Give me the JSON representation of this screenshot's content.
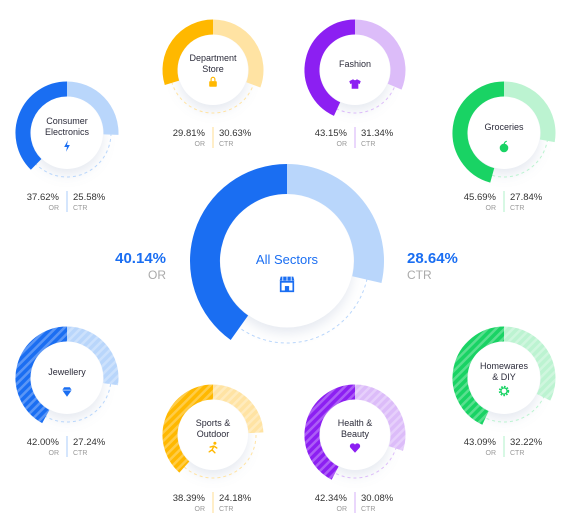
{
  "chart_data": {
    "type": "donut",
    "center": {
      "label": "All Sectors",
      "or": 40.14,
      "ctr": 28.64,
      "or_text": "40.14%",
      "ctr_text": "28.64%",
      "or_unit": "OR",
      "ctr_unit": "CTR",
      "icon": "store-icon",
      "color": "#1a6ef2",
      "light": "#b9d6fb"
    },
    "sectors": [
      {
        "id": "consumer-electronics",
        "label_lines": [
          "Consumer",
          "Electronics"
        ],
        "or": 37.62,
        "ctr": 25.58,
        "or_text": "37.62%",
        "ctr_text": "25.58%",
        "icon": "lightning-icon",
        "color": "#1a6ef2",
        "light": "#b9d6fb"
      },
      {
        "id": "department-store",
        "label_lines": [
          "Department",
          "Store"
        ],
        "or": 29.81,
        "ctr": 30.63,
        "or_text": "29.81%",
        "ctr_text": "30.63%",
        "icon": "shopping-bag-icon",
        "color": "#ffb800",
        "light": "#ffe3a3"
      },
      {
        "id": "fashion",
        "label_lines": [
          "Fashion"
        ],
        "or": 43.15,
        "ctr": 31.34,
        "or_text": "43.15%",
        "ctr_text": "31.34%",
        "icon": "tshirt-icon",
        "color": "#8c1ff2",
        "light": "#dcbcf9"
      },
      {
        "id": "groceries",
        "label_lines": [
          "Groceries"
        ],
        "or": 45.69,
        "ctr": 27.84,
        "or_text": "45.69%",
        "ctr_text": "27.84%",
        "icon": "apple-icon",
        "color": "#19d364",
        "light": "#bcf3d1"
      },
      {
        "id": "jewellery",
        "label_lines": [
          "Jewellery"
        ],
        "or": 42.0,
        "ctr": 27.24,
        "or_text": "42.00%",
        "ctr_text": "27.24%",
        "icon": "diamond-icon",
        "color": "#1a6ef2",
        "light": "#b9d6fb"
      },
      {
        "id": "sports-outdoor",
        "label_lines": [
          "Sports &",
          "Outdoor"
        ],
        "or": 38.39,
        "ctr": 24.18,
        "or_text": "38.39%",
        "ctr_text": "24.18%",
        "icon": "runner-icon",
        "color": "#ffb800",
        "light": "#ffe3a3"
      },
      {
        "id": "health-beauty",
        "label_lines": [
          "Health &",
          "Beauty"
        ],
        "or": 42.34,
        "ctr": 30.08,
        "or_text": "42.34%",
        "ctr_text": "30.08%",
        "icon": "heart-icon",
        "color": "#8c1ff2",
        "light": "#dcbcf9"
      },
      {
        "id": "homewares-diy",
        "label_lines": [
          "Homewares",
          "& DIY"
        ],
        "or": 43.09,
        "ctr": 32.22,
        "or_text": "43.09%",
        "ctr_text": "32.22%",
        "icon": "gear-icon",
        "color": "#19d364",
        "light": "#bcf3d1"
      }
    ],
    "units": {
      "or": "OR",
      "ctr": "CTR"
    },
    "ring_scale_max_percent": 50,
    "striped_sectors": [
      "jewellery",
      "sports-outdoor",
      "health-beauty",
      "homewares-diy"
    ]
  }
}
